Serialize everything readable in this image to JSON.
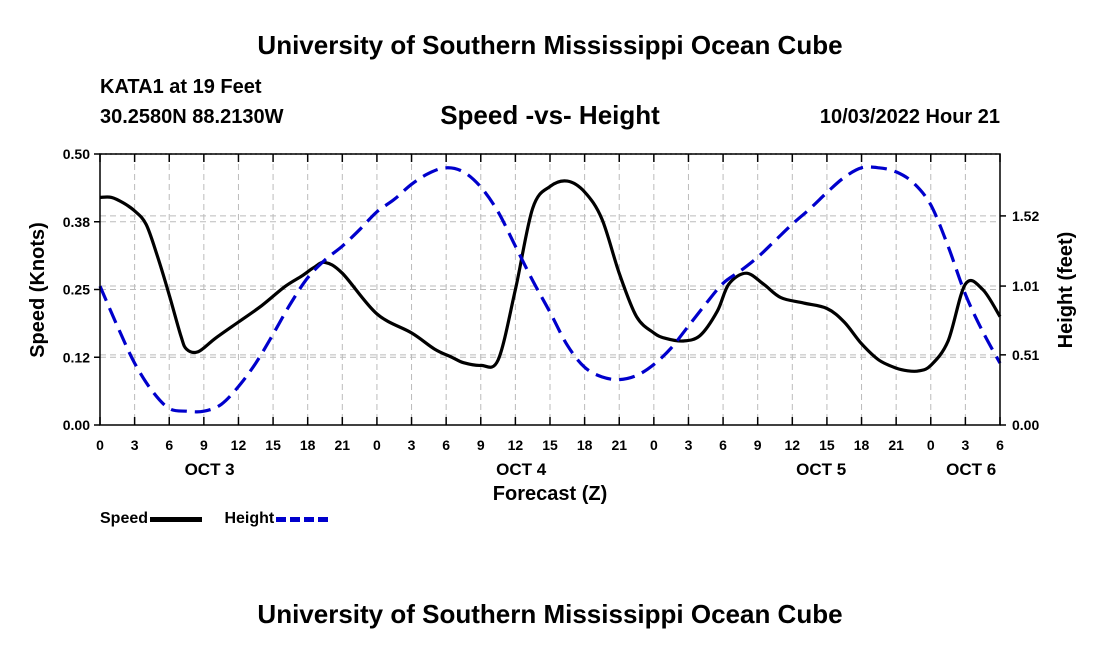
{
  "header": {
    "title": "University of Southern Mississippi Ocean Cube",
    "station": "KATA1 at 19 Feet",
    "coords": "30.2580N  88.2130W",
    "subtitle": "Speed -vs- Height",
    "datestamp": "10/03/2022 Hour 21"
  },
  "footer": {
    "title": "University of Southern Mississippi Ocean Cube"
  },
  "legend": {
    "speed_label": "Speed",
    "height_label": "Height"
  },
  "colors": {
    "speed": "#000000",
    "height": "#0000cc",
    "grid": "#bbbbbb"
  },
  "chart_data": {
    "type": "line",
    "xlabel": "Forecast (Z)",
    "ylabel_left": "Speed (Knots)",
    "ylabel_right": "Height (feet)",
    "x_range": [
      0,
      78
    ],
    "x_ticks": [
      0,
      3,
      6,
      9,
      12,
      15,
      18,
      21,
      24,
      27,
      30,
      33,
      36,
      39,
      42,
      45,
      48,
      51,
      54,
      57,
      60,
      63,
      66,
      69,
      72,
      75,
      78
    ],
    "x_tick_labels": [
      "0",
      "3",
      "6",
      "9",
      "12",
      "15",
      "18",
      "21",
      "0",
      "3",
      "6",
      "9",
      "12",
      "15",
      "18",
      "21",
      "0",
      "3",
      "6",
      "9",
      "12",
      "15",
      "18",
      "21",
      "0",
      "3",
      "6"
    ],
    "day_labels": [
      {
        "text": "OCT 3",
        "x": 9.5
      },
      {
        "text": "OCT 4",
        "x": 36.5
      },
      {
        "text": "OCT 5",
        "x": 62.5
      },
      {
        "text": "OCT 6",
        "x": 75.5
      }
    ],
    "ylim_left": [
      0,
      0.5
    ],
    "y_ticks_left": [
      0,
      0.125,
      0.25,
      0.375,
      0.5
    ],
    "y_tick_labels_left": [
      "0.00",
      "0.12",
      "0.25",
      "0.38",
      "0.50"
    ],
    "ylim_right": [
      0,
      1.97
    ],
    "y_ticks_right": [
      0,
      0.51,
      1.01,
      1.52
    ],
    "y_tick_labels_right": [
      "0.00",
      "0.51",
      "1.01",
      "1.52"
    ],
    "series": [
      {
        "name": "Speed",
        "axis": "left",
        "style": "solid",
        "x": [
          0,
          1,
          2,
          3,
          4,
          5,
          6,
          7,
          7.5,
          8.5,
          10,
          12,
          14,
          16,
          17.5,
          18.5,
          19.5,
          21,
          24,
          27,
          29,
          30.5,
          31.5,
          33,
          34.5,
          36,
          37.5,
          39,
          40.5,
          42,
          43.5,
          45,
          46.5,
          48,
          49,
          50.5,
          52,
          53.5,
          54.5,
          56,
          57.5,
          59,
          61,
          63,
          64.5,
          66,
          67.5,
          69,
          70,
          71,
          72,
          73.5,
          75,
          76.5,
          78
        ],
        "values": [
          0.42,
          0.42,
          0.41,
          0.395,
          0.37,
          0.31,
          0.24,
          0.165,
          0.14,
          0.135,
          0.16,
          0.19,
          0.22,
          0.255,
          0.275,
          0.29,
          0.3,
          0.28,
          0.205,
          0.17,
          0.14,
          0.125,
          0.115,
          0.11,
          0.12,
          0.25,
          0.4,
          0.44,
          0.45,
          0.43,
          0.38,
          0.28,
          0.2,
          0.17,
          0.16,
          0.155,
          0.165,
          0.21,
          0.26,
          0.28,
          0.26,
          0.235,
          0.225,
          0.215,
          0.19,
          0.15,
          0.12,
          0.105,
          0.1,
          0.1,
          0.11,
          0.155,
          0.26,
          0.25,
          0.2
        ]
      },
      {
        "name": "Height",
        "axis": "right",
        "style": "dashed",
        "x": [
          0,
          1.5,
          3,
          4.5,
          6,
          7.5,
          9,
          10.5,
          12,
          13.5,
          15,
          16.5,
          18,
          19.5,
          21,
          22.5,
          24,
          25.5,
          27,
          28.5,
          30,
          31.5,
          33,
          34.5,
          36,
          37.5,
          39,
          40.5,
          42,
          43.5,
          45,
          46.5,
          48,
          49.5,
          51,
          52.5,
          54,
          55.5,
          57,
          58.5,
          60,
          61.5,
          63,
          64.5,
          66,
          67.5,
          69,
          70.5,
          72,
          73.5,
          75,
          76.5,
          78
        ],
        "values": [
          1.01,
          0.72,
          0.45,
          0.25,
          0.12,
          0.1,
          0.1,
          0.15,
          0.28,
          0.45,
          0.66,
          0.88,
          1.07,
          1.2,
          1.3,
          1.42,
          1.55,
          1.64,
          1.75,
          1.83,
          1.87,
          1.84,
          1.73,
          1.55,
          1.3,
          1.05,
          0.82,
          0.58,
          0.42,
          0.35,
          0.33,
          0.36,
          0.44,
          0.56,
          0.72,
          0.88,
          1.03,
          1.12,
          1.22,
          1.34,
          1.46,
          1.57,
          1.69,
          1.8,
          1.87,
          1.87,
          1.84,
          1.76,
          1.6,
          1.3,
          0.95,
          0.68,
          0.45
        ]
      }
    ]
  }
}
